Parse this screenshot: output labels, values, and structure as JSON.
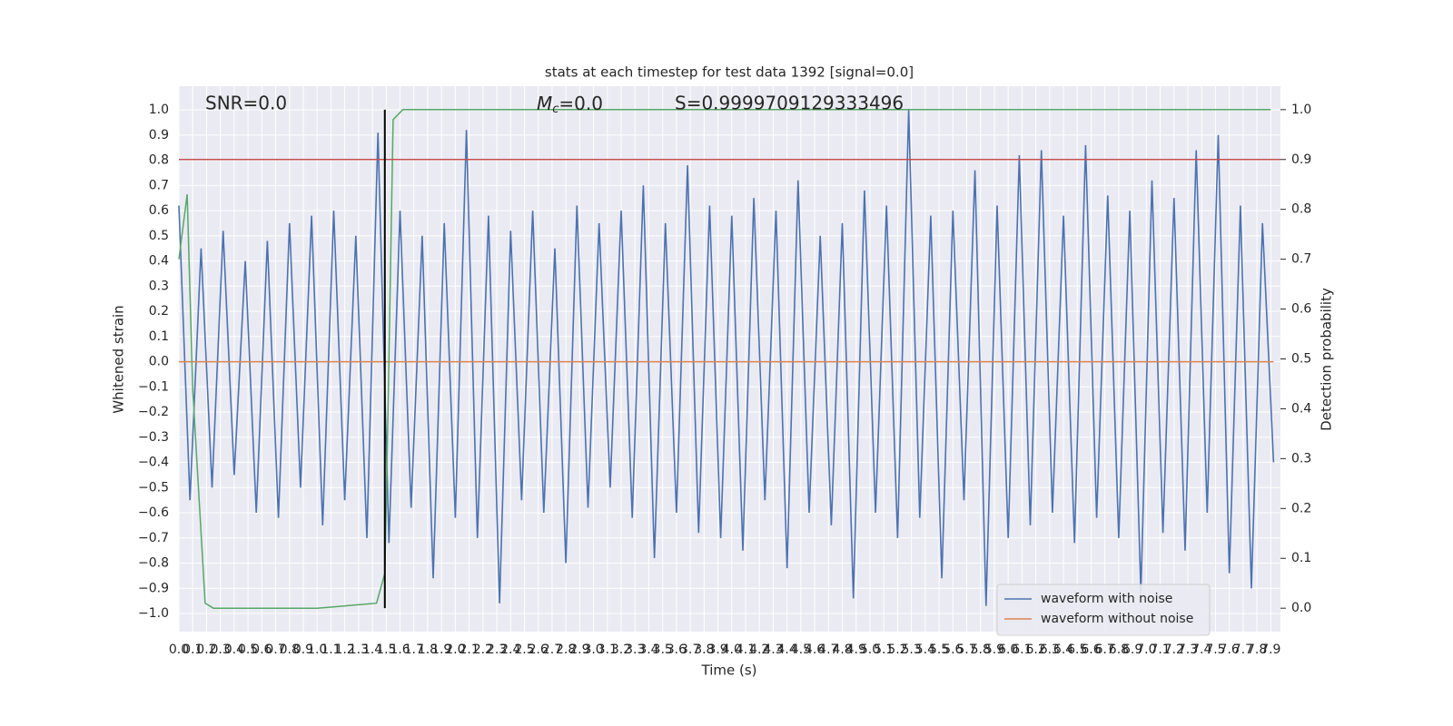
{
  "chart_data": {
    "type": "line",
    "title": "stats at each timestep for test data 1392 [signal=0.0]",
    "xlabel": "Time (s)",
    "ylabel": "Whitened strain",
    "y2label": "Detection probability",
    "xlim": [
      0,
      7.97
    ],
    "ylim": [
      -1.072,
      1.094
    ],
    "y2lim": [
      -0.047,
      1.047
    ],
    "xticks": [
      {
        "value": 0,
        "label": "0.0"
      },
      0.1,
      0.2,
      0.3,
      0.4,
      0.5,
      0.6,
      0.7,
      0.8,
      0.9,
      {
        "value": 1,
        "label": "1.0"
      },
      1.1,
      1.2,
      1.3,
      1.4,
      1.5,
      1.6,
      1.7,
      1.8,
      1.9,
      {
        "value": 2,
        "label": "2.0"
      },
      2.1,
      2.2,
      2.3,
      2.4,
      2.5,
      2.6,
      2.7,
      2.8,
      2.9,
      {
        "value": 3,
        "label": "3.0"
      },
      3.1,
      3.2,
      3.3,
      3.4,
      3.5,
      3.6,
      3.7,
      3.8,
      3.9,
      {
        "value": 4,
        "label": "4.0"
      },
      4.1,
      4.2,
      4.3,
      4.4,
      4.5,
      4.6,
      4.7,
      4.8,
      4.9,
      {
        "value": 5,
        "label": "5.0"
      },
      5.1,
      5.2,
      5.3,
      5.4,
      5.5,
      5.6,
      5.7,
      5.8,
      5.9,
      {
        "value": 6,
        "label": "6.0"
      },
      6.1,
      6.2,
      6.3,
      6.4,
      6.5,
      6.6,
      6.7,
      6.8,
      6.9,
      {
        "value": 7,
        "label": "7.0"
      },
      7.1,
      7.2,
      7.3,
      7.4,
      7.5,
      7.6,
      7.7,
      7.8,
      7.9
    ],
    "yticks": [
      {
        "value": -1,
        "label": "−1.0"
      },
      {
        "value": -0.9,
        "label": "−0.9"
      },
      {
        "value": -0.8,
        "label": "−0.8"
      },
      {
        "value": -0.7,
        "label": "−0.7"
      },
      {
        "value": -0.6,
        "label": "−0.6"
      },
      {
        "value": -0.5,
        "label": "−0.5"
      },
      {
        "value": -0.4,
        "label": "−0.4"
      },
      {
        "value": -0.3,
        "label": "−0.3"
      },
      {
        "value": -0.2,
        "label": "−0.2"
      },
      {
        "value": -0.1,
        "label": "−0.1"
      },
      {
        "value": 0,
        "label": "0.0"
      },
      0.1,
      0.2,
      0.3,
      0.4,
      0.5,
      0.6,
      0.7,
      0.8,
      0.9,
      {
        "value": 1,
        "label": "1.0"
      }
    ],
    "y2ticks": [
      {
        "value": 0,
        "label": "0.0"
      },
      0.1,
      0.2,
      0.3,
      0.4,
      0.5,
      0.6,
      0.7,
      0.8,
      0.9,
      {
        "value": 1,
        "label": "1.0"
      }
    ],
    "grid": true,
    "legend": "lower right",
    "series": [
      {
        "name": "waveform with noise",
        "color": "#4c72b0",
        "x": [
          0,
          0.08,
          0.16,
          0.24,
          0.32,
          0.4,
          0.48,
          0.56,
          0.64,
          0.72,
          0.8,
          0.88,
          0.96,
          1.04,
          1.12,
          1.2,
          1.28,
          1.36,
          1.44,
          1.52,
          1.6,
          1.68,
          1.76,
          1.84,
          1.92,
          2,
          2.08,
          2.16,
          2.24,
          2.32,
          2.4,
          2.48,
          2.56,
          2.64,
          2.72,
          2.8,
          2.88,
          2.96,
          3.04,
          3.12,
          3.2,
          3.28,
          3.36,
          3.44,
          3.52,
          3.6,
          3.68,
          3.76,
          3.84,
          3.92,
          4,
          4.08,
          4.16,
          4.24,
          4.32,
          4.4,
          4.48,
          4.56,
          4.64,
          4.72,
          4.8,
          4.88,
          4.96,
          5.04,
          5.12,
          5.2,
          5.28,
          5.36,
          5.44,
          5.52,
          5.6,
          5.68,
          5.76,
          5.84,
          5.92,
          6,
          6.08,
          6.16,
          6.24,
          6.32,
          6.4,
          6.48,
          6.56,
          6.64,
          6.72,
          6.8,
          6.88,
          6.96,
          7.04,
          7.12,
          7.2,
          7.28,
          7.36,
          7.44,
          7.52,
          7.6,
          7.68,
          7.76,
          7.84,
          7.92
        ],
        "values": [
          0.62,
          -0.55,
          0.45,
          -0.5,
          0.52,
          -0.45,
          0.4,
          -0.6,
          0.48,
          -0.62,
          0.55,
          -0.5,
          0.58,
          -0.65,
          0.6,
          -0.55,
          0.5,
          -0.7,
          0.91,
          -0.72,
          0.6,
          -0.58,
          0.5,
          -0.86,
          0.55,
          -0.62,
          0.92,
          -0.7,
          0.58,
          -0.96,
          0.52,
          -0.55,
          0.6,
          -0.6,
          0.45,
          -0.8,
          0.62,
          -0.58,
          0.55,
          -0.5,
          0.6,
          -0.62,
          0.7,
          -0.78,
          0.55,
          -0.6,
          0.78,
          -0.68,
          0.62,
          -0.7,
          0.58,
          -0.75,
          0.65,
          -0.55,
          0.6,
          -0.82,
          0.72,
          -0.6,
          0.5,
          -0.65,
          0.55,
          -0.94,
          0.68,
          -0.6,
          0.62,
          -0.7,
          1.0,
          -0.62,
          0.58,
          -0.86,
          0.6,
          -0.55,
          0.76,
          -0.97,
          0.62,
          -0.7,
          0.82,
          -0.65,
          0.84,
          -0.6,
          0.58,
          -0.72,
          0.86,
          -0.62,
          0.66,
          -0.7,
          0.6,
          -0.92,
          0.72,
          -0.68,
          0.65,
          -0.75,
          0.84,
          -0.6,
          0.9,
          -0.84,
          0.62,
          -0.9,
          0.55,
          -0.4
        ]
      },
      {
        "name": "waveform without noise",
        "color": "#dd8452",
        "x": [
          0,
          7.92
        ],
        "values": [
          0,
          0
        ]
      },
      {
        "color": "#55a868",
        "axis": "y2",
        "x": [
          0,
          0.06,
          0.1,
          0.19,
          0.25,
          1.0,
          1.43,
          1.49,
          1.52,
          1.55,
          1.62,
          7.9
        ],
        "values": [
          0.7,
          0.83,
          0.44,
          0.01,
          0.0,
          0.0,
          0.01,
          0.07,
          0.5,
          0.98,
          1.0,
          1.0
        ]
      }
    ],
    "threshold": {
      "value": 0.9,
      "axis": "y2",
      "color": "#c44e52"
    },
    "vline": {
      "x": 1.49,
      "ymin": 0,
      "ymax": 1,
      "axis": "y2",
      "color": "#000000"
    },
    "annotations": {
      "snr": "SNR=0.0",
      "mc": {
        "symbol": "M",
        "subscript": "c",
        "text": "=0.0"
      },
      "s": "S=0.9999709129333496"
    }
  }
}
